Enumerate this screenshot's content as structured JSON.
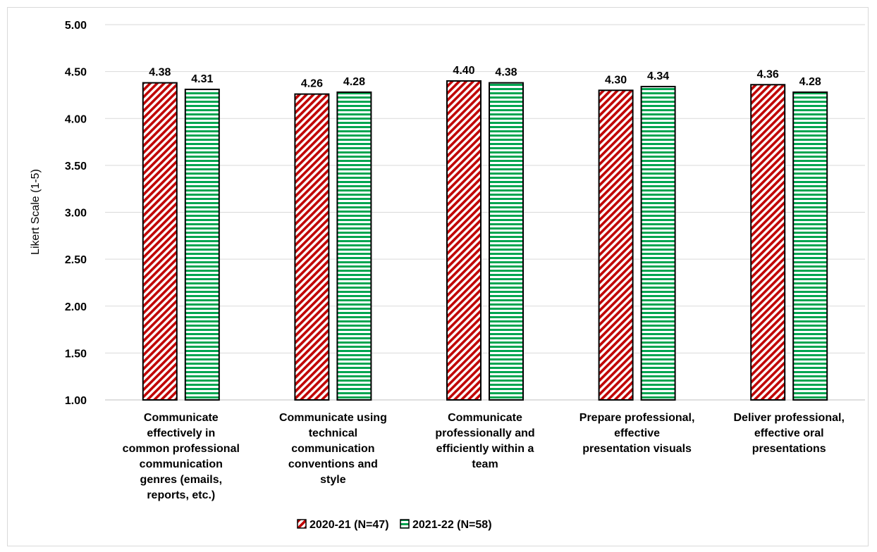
{
  "chart_data": {
    "type": "bar",
    "title": "",
    "xlabel": "",
    "ylabel": "Likert Scale (1-5)",
    "ylim": [
      1.0,
      5.0
    ],
    "yticks": [
      "1.00",
      "1.50",
      "2.00",
      "2.50",
      "3.00",
      "3.50",
      "4.00",
      "4.50",
      "5.00"
    ],
    "grid": true,
    "legend_position": "bottom",
    "categories": [
      [
        "Communicate",
        "effectively in",
        "common professional",
        "communication",
        "genres (emails,",
        "reports, etc.)"
      ],
      [
        "Communicate using",
        "technical",
        "communication",
        "conventions and",
        "style"
      ],
      [
        "Communicate",
        "professionally and",
        "efficiently within a",
        "team"
      ],
      [
        "Prepare professional,",
        "effective",
        "presentation visuals"
      ],
      [
        "Deliver professional,",
        "effective oral",
        "presentations"
      ]
    ],
    "series": [
      {
        "name": "2020-21 (N=47)",
        "values": [
          4.38,
          4.26,
          4.4,
          4.3,
          4.36
        ],
        "labels": [
          "4.38",
          "4.26",
          "4.40",
          "4.30",
          "4.36"
        ],
        "color": "#c00000",
        "pattern": "diagonal"
      },
      {
        "name": "2021-22 (N=58)",
        "values": [
          4.31,
          4.28,
          4.38,
          4.34,
          4.28
        ],
        "labels": [
          "4.31",
          "4.28",
          "4.38",
          "4.34",
          "4.28"
        ],
        "color": "#00a550",
        "pattern": "horizontal"
      }
    ]
  }
}
